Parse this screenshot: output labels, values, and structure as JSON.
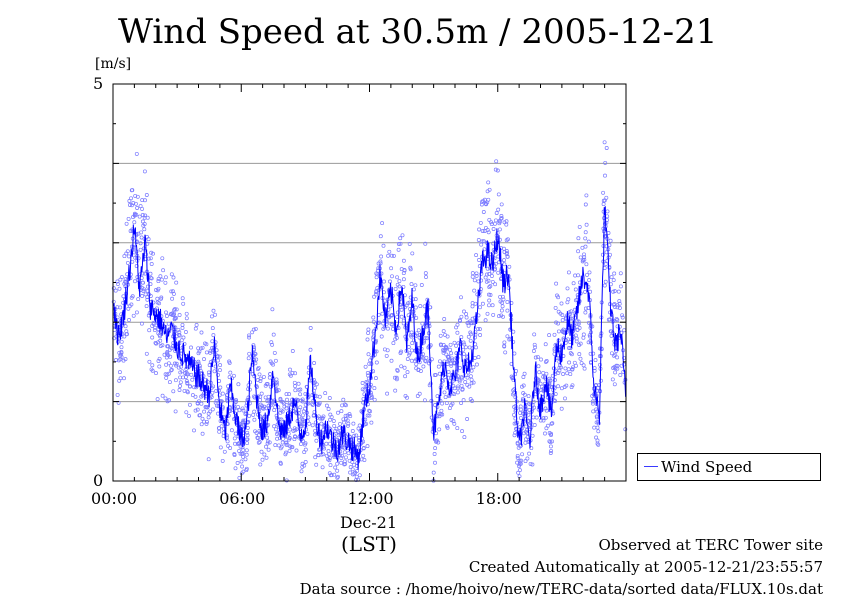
{
  "chart_data": {
    "type": "scatter",
    "title": "Wind Speed at 30.5m / 2005-12-21",
    "ylabel": "[m/s]",
    "ylim": [
      0,
      5
    ],
    "y_ticks": [
      "0",
      "5"
    ],
    "y_gridlines": [
      1,
      2,
      3,
      4
    ],
    "xlim": [
      "00:00",
      "24:00"
    ],
    "x_ticks": [
      "00:00",
      "06:00",
      "12:00",
      "18:00"
    ],
    "date_label": "Dec-21",
    "timezone_label": "(LST)",
    "grid": true,
    "legend_position": "right",
    "series": [
      {
        "name": "Wind Speed",
        "color": "#0000ff",
        "marker_color": "#7a7aff",
        "x_hours": [
          0,
          0.25,
          0.5,
          0.75,
          1,
          1.25,
          1.5,
          1.75,
          2,
          2.25,
          2.5,
          2.75,
          3,
          3.25,
          3.5,
          3.75,
          4,
          4.25,
          4.5,
          4.75,
          5,
          5.25,
          5.5,
          5.75,
          6,
          6.25,
          6.5,
          6.75,
          7,
          7.25,
          7.5,
          7.75,
          8,
          8.25,
          8.5,
          8.75,
          9,
          9.25,
          9.5,
          9.75,
          10,
          10.25,
          10.5,
          10.75,
          11,
          11.25,
          11.5,
          11.75,
          12,
          12.25,
          12.5,
          12.75,
          13,
          13.25,
          13.5,
          13.75,
          14,
          14.25,
          14.5,
          14.75,
          15,
          15.25,
          15.5,
          15.75,
          16,
          16.25,
          16.5,
          16.75,
          17,
          17.25,
          17.5,
          17.75,
          18,
          18.25,
          18.5,
          18.75,
          19,
          19.25,
          19.5,
          19.75,
          20,
          20.25,
          20.5,
          20.75,
          21,
          21.25,
          21.5,
          21.75,
          22,
          22.25,
          22.5,
          22.75,
          23,
          23.25,
          23.5,
          23.75,
          24
        ],
        "values": [
          2.3,
          1.8,
          2.1,
          2.6,
          3.2,
          2.4,
          3.0,
          2.2,
          2.1,
          2.0,
          1.8,
          1.9,
          1.7,
          1.6,
          1.5,
          1.4,
          1.3,
          1.2,
          1.1,
          1.7,
          0.9,
          0.6,
          1.2,
          0.8,
          0.5,
          0.7,
          1.6,
          1.0,
          0.6,
          0.8,
          1.4,
          0.7,
          0.6,
          0.8,
          1.0,
          0.6,
          0.7,
          1.5,
          0.8,
          0.5,
          0.7,
          0.5,
          0.4,
          0.6,
          0.5,
          0.4,
          0.3,
          0.9,
          1.2,
          1.8,
          2.6,
          2.0,
          2.4,
          1.9,
          2.5,
          1.7,
          2.3,
          1.5,
          1.9,
          2.2,
          0.6,
          1.0,
          1.5,
          1.2,
          1.3,
          1.7,
          1.4,
          1.5,
          2.0,
          2.7,
          2.9,
          2.7,
          3.1,
          2.5,
          2.6,
          1.4,
          0.4,
          0.9,
          0.5,
          1.4,
          0.9,
          1.3,
          0.8,
          1.7,
          1.6,
          2.0,
          1.8,
          2.2,
          2.6,
          2.4,
          1.2,
          0.8,
          3.5,
          2.3,
          1.7,
          1.9,
          1.0
        ]
      }
    ]
  },
  "footer": {
    "observed": "Observed at TERC Tower site",
    "created": "Created Automatically at 2005-12-21/23:55:57",
    "source": "Data source : /home/hoivo/new/TERC-data/sorted  data/FLUX.10s.dat"
  }
}
